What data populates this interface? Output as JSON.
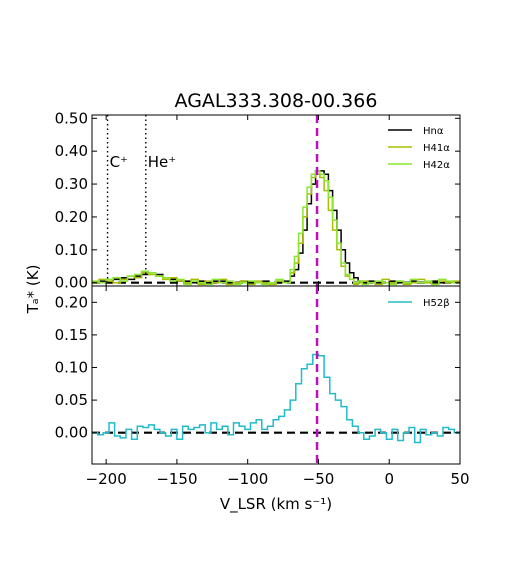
{
  "chart_data": [
    {
      "type": "line",
      "panel": "top",
      "title": "AGAL333.308-00.366",
      "xlabel": "",
      "ylabel": "",
      "xlim": [
        -210,
        50
      ],
      "ylim": [
        -0.01,
        0.51
      ],
      "yticks": [
        0.0,
        0.1,
        0.2,
        0.3,
        0.4,
        0.5
      ],
      "ytick_labels": [
        "0.00",
        "0.10",
        "0.20",
        "0.30",
        "0.40",
        "0.50"
      ],
      "grid": false,
      "legend": "top-right",
      "reference_lines": [
        {
          "kind": "vertical",
          "x": -51,
          "color": "#bb11bb",
          "style": "dashed"
        },
        {
          "kind": "horizontal",
          "y": 0,
          "color": "#000000",
          "style": "dashed"
        }
      ],
      "annotations": [
        {
          "text": "C⁺",
          "x": -199,
          "y": 0.37,
          "line": "dotted"
        },
        {
          "text": "He⁺",
          "x": -172,
          "y": 0.37,
          "line": "dotted"
        }
      ],
      "series": [
        {
          "name": "Hnα",
          "color": "#000000",
          "x": [
            -210,
            -205,
            -200,
            -195,
            -190,
            -185,
            -180,
            -175,
            -170,
            -165,
            -160,
            -155,
            -150,
            -145,
            -140,
            -135,
            -130,
            -125,
            -120,
            -115,
            -110,
            -105,
            -100,
            -95,
            -90,
            -85,
            -80,
            -75,
            -70,
            -67,
            -64,
            -61,
            -58,
            -55,
            -52,
            -49,
            -46,
            -43,
            -40,
            -37,
            -34,
            -31,
            -28,
            -25,
            -22,
            -19,
            -15,
            -10,
            -5,
            0,
            5,
            10,
            15,
            20,
            25,
            30,
            35,
            40,
            45
          ],
          "y": [
            0.0,
            0.005,
            0.0,
            0.01,
            0.015,
            0.01,
            0.02,
            0.025,
            0.03,
            0.025,
            0.015,
            0.01,
            0.005,
            0.005,
            0.0,
            0.005,
            0.0,
            0.005,
            0.005,
            0.0,
            0.0,
            0.005,
            0.0,
            0.0,
            0.005,
            0.0,
            0.0,
            0.005,
            0.02,
            0.04,
            0.09,
            0.16,
            0.24,
            0.3,
            0.34,
            0.34,
            0.33,
            0.28,
            0.22,
            0.16,
            0.1,
            0.06,
            0.03,
            0.015,
            0.005,
            0.0,
            0.005,
            0.0,
            0.0,
            0.005,
            0.0,
            0.0,
            0.005,
            0.0,
            0.0,
            0.005,
            0.0,
            0.0,
            0.0
          ]
        },
        {
          "name": "H41α",
          "color": "#a8bd00",
          "x": [
            -210,
            -205,
            -200,
            -195,
            -190,
            -185,
            -180,
            -175,
            -170,
            -165,
            -160,
            -155,
            -150,
            -145,
            -140,
            -135,
            -130,
            -125,
            -120,
            -115,
            -110,
            -105,
            -100,
            -95,
            -90,
            -85,
            -80,
            -75,
            -70,
            -67,
            -64,
            -61,
            -58,
            -55,
            -52,
            -49,
            -46,
            -43,
            -40,
            -37,
            -34,
            -31,
            -28,
            -25,
            -22,
            -19,
            -15,
            -10,
            -5,
            0,
            5,
            10,
            15,
            20,
            25,
            30,
            35,
            40,
            45
          ],
          "y": [
            0.0,
            0.01,
            0.005,
            0.0,
            0.01,
            0.02,
            0.015,
            0.03,
            0.025,
            0.02,
            0.01,
            0.015,
            0.005,
            0.0,
            0.01,
            -0.005,
            0.005,
            0.0,
            0.01,
            -0.005,
            0.0,
            0.005,
            -0.005,
            0.005,
            0.0,
            -0.005,
            0.005,
            0.0,
            0.03,
            0.06,
            0.12,
            0.2,
            0.27,
            0.32,
            0.33,
            0.32,
            0.28,
            0.22,
            0.16,
            0.1,
            0.05,
            0.02,
            0.01,
            -0.005,
            0.0,
            0.005,
            0.0,
            -0.005,
            0.01,
            0.0,
            0.005,
            -0.005,
            0.0,
            0.01,
            0.0,
            -0.005,
            0.005,
            0.0,
            0.005
          ]
        },
        {
          "name": "H42α",
          "color": "#8ae62e",
          "x": [
            -210,
            -205,
            -200,
            -195,
            -190,
            -185,
            -180,
            -175,
            -170,
            -165,
            -160,
            -155,
            -150,
            -145,
            -140,
            -135,
            -130,
            -125,
            -120,
            -115,
            -110,
            -105,
            -100,
            -95,
            -90,
            -85,
            -80,
            -75,
            -70,
            -67,
            -64,
            -61,
            -58,
            -55,
            -52,
            -49,
            -46,
            -43,
            -40,
            -37,
            -34,
            -31,
            -28,
            -25,
            -22,
            -19,
            -15,
            -10,
            -5,
            0,
            5,
            10,
            15,
            20,
            25,
            30,
            35,
            40,
            45
          ],
          "y": [
            0.005,
            0.0,
            0.01,
            0.015,
            0.005,
            0.02,
            0.025,
            0.035,
            0.03,
            0.02,
            0.015,
            0.005,
            0.01,
            -0.005,
            0.005,
            0.0,
            -0.005,
            0.01,
            0.0,
            0.005,
            -0.005,
            0.0,
            0.005,
            0.0,
            -0.005,
            0.0,
            0.01,
            0.0,
            0.04,
            0.08,
            0.15,
            0.23,
            0.29,
            0.33,
            0.34,
            0.33,
            0.31,
            0.26,
            0.19,
            0.12,
            0.06,
            0.025,
            0.01,
            0.0,
            0.005,
            -0.005,
            0.0,
            0.005,
            0.0,
            -0.005,
            0.005,
            0.0,
            0.01,
            0.0,
            0.005,
            -0.005,
            0.01,
            0.005,
            0.0
          ]
        }
      ]
    },
    {
      "type": "line",
      "panel": "bottom",
      "xlabel": "V_LSR (km s⁻¹)",
      "ylabel": "Tₐ* (K)",
      "xlim": [
        -210,
        50
      ],
      "ylim": [
        -0.048,
        0.225
      ],
      "xticks": [
        -200,
        -150,
        -100,
        -50,
        0,
        50
      ],
      "xtick_labels": [
        "−200",
        "−150",
        "−100",
        "−50",
        "0",
        "50"
      ],
      "yticks": [
        0.0,
        0.05,
        0.1,
        0.15,
        0.2
      ],
      "ytick_labels": [
        "0.00",
        "0.05",
        "0.10",
        "0.15",
        "0.20"
      ],
      "grid": false,
      "legend": "top-right",
      "reference_lines": [
        {
          "kind": "vertical",
          "x": -51,
          "color": "#bb11bb",
          "style": "dashed"
        },
        {
          "kind": "horizontal",
          "y": 0,
          "color": "#000000",
          "style": "dashed"
        }
      ],
      "series": [
        {
          "name": "H52β",
          "color": "#22bbcc",
          "x": [
            -210,
            -206,
            -202,
            -198,
            -194,
            -190,
            -186,
            -182,
            -178,
            -174,
            -170,
            -166,
            -162,
            -158,
            -154,
            -150,
            -146,
            -142,
            -138,
            -134,
            -130,
            -126,
            -122,
            -118,
            -114,
            -110,
            -106,
            -102,
            -98,
            -94,
            -90,
            -86,
            -82,
            -78,
            -74,
            -70,
            -66,
            -62,
            -58,
            -54,
            -50,
            -46,
            -42,
            -38,
            -34,
            -30,
            -26,
            -22,
            -18,
            -14,
            -10,
            -6,
            -2,
            2,
            6,
            10,
            14,
            18,
            22,
            26,
            30,
            34,
            38,
            42,
            46
          ],
          "y": [
            0.0,
            -0.003,
            0.0,
            0.015,
            -0.005,
            -0.008,
            0.005,
            -0.01,
            0.01,
            0.008,
            0.012,
            0.005,
            0.0,
            -0.005,
            0.005,
            -0.01,
            0.01,
            0.005,
            0.008,
            0.012,
            0.0,
            0.015,
            0.005,
            0.01,
            -0.003,
            0.015,
            0.01,
            0.005,
            0.015,
            0.02,
            0.005,
            0.01,
            0.02,
            0.025,
            0.035,
            0.05,
            0.075,
            0.098,
            0.105,
            0.12,
            0.118,
            0.085,
            0.06,
            0.05,
            0.04,
            0.02,
            0.01,
            0.0,
            -0.01,
            -0.005,
            0.005,
            0.0,
            -0.01,
            0.005,
            -0.012,
            0.0,
            0.008,
            -0.015,
            0.005,
            -0.003,
            0.0,
            -0.005,
            0.008,
            0.005,
            0.0
          ]
        }
      ]
    }
  ]
}
